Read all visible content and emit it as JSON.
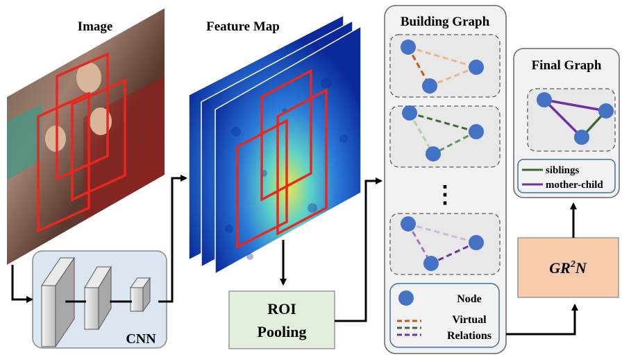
{
  "labels": {
    "image": "Image",
    "feature_map": "Feature Map",
    "building_graph": "Building Graph",
    "final_graph": "Final Graph",
    "cnn": "CNN",
    "roi_line1": "ROI",
    "roi_line2": "Pooling",
    "gr2n_base": "GR",
    "gr2n_sup": "2",
    "gr2n_end": "N",
    "ellipsis": "⋮"
  },
  "legend_building": {
    "node": "Node",
    "virtual_line1": "Virtual",
    "virtual_line2": "Relations"
  },
  "legend_final": {
    "siblings": "siblings",
    "mother_child": "mother-child"
  },
  "colors": {
    "node": "#4472c4",
    "roi_box": "#e8281e",
    "cnn_panel": "#dce6f2",
    "roi_panel": "#e2efda",
    "gr2n_panel": "#f8cbad",
    "graph_panel": "#f2f2f2",
    "siblings": "#3a6b35",
    "mother_child": "#7030a0",
    "virtual_orange": "#c55a11",
    "virtual_green": "#3a6b35",
    "virtual_purple": "#7030a0"
  }
}
